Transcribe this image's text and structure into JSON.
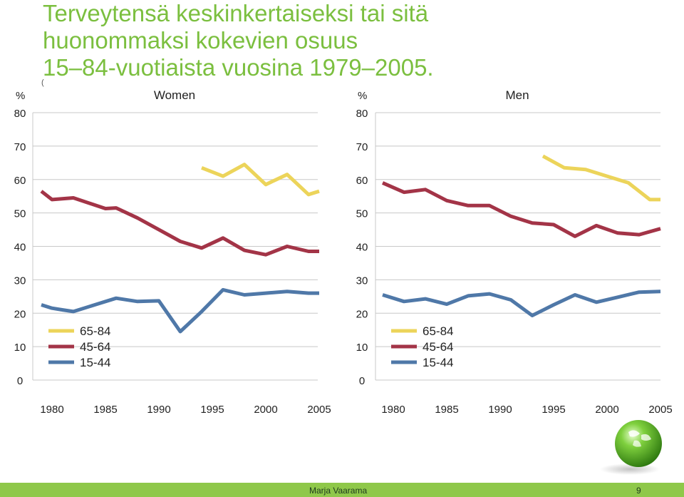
{
  "title_lines": [
    "Terveytensä keskinkertaiseksi tai sitä",
    "huonommaksi kokevien osuus",
    "15–84-vuotiaista vuosina 1979–2005."
  ],
  "note": "(",
  "footer": {
    "author": "Marja Vaarama",
    "page": "9"
  },
  "colors": {
    "title": "#7bbf3f",
    "age_65_84": "#ecd45a",
    "age_45_64": "#a33447",
    "age_15_44": "#4f78a8",
    "grid": "#c8c8c8",
    "footer": "#8fc84a"
  },
  "chart_data": [
    {
      "type": "line",
      "title": "Women",
      "ylabel": "%",
      "ylim": [
        0,
        80
      ],
      "yticks": [
        0,
        10,
        20,
        30,
        40,
        50,
        60,
        70,
        80
      ],
      "xlim": [
        1979,
        2005
      ],
      "xticks": [
        1980,
        1985,
        1990,
        1995,
        2000,
        2005
      ],
      "legend": [
        "65-84",
        "45-64",
        "15-44"
      ],
      "series": [
        {
          "name": "65-84",
          "color": "#ecd45a",
          "x": [
            1994,
            1996,
            1998,
            2000,
            2002,
            2004,
            2005
          ],
          "y": [
            63.5,
            61,
            64.5,
            58.5,
            61.5,
            55.5,
            56.5
          ]
        },
        {
          "name": "45-64",
          "color": "#a33447",
          "x": [
            1979,
            1980,
            1982,
            1985,
            1986,
            1988,
            1990,
            1992,
            1994,
            1996,
            1998,
            2000,
            2002,
            2004,
            2005
          ],
          "y": [
            56.5,
            54,
            54.5,
            51.3,
            51.5,
            48.5,
            45,
            41.5,
            39.5,
            42.5,
            38.8,
            37.5,
            40,
            38.5,
            38.5
          ]
        },
        {
          "name": "15-44",
          "color": "#4f78a8",
          "x": [
            1979,
            1980,
            1981,
            1982,
            1984,
            1986,
            1988,
            1990,
            1992,
            1994,
            1996,
            1998,
            2000,
            2002,
            2004,
            2005
          ],
          "y": [
            22.5,
            21.5,
            21,
            20.5,
            22.5,
            24.5,
            23.5,
            23.7,
            14.5,
            20.5,
            27,
            25.5,
            26,
            26.5,
            26,
            26
          ]
        }
      ]
    },
    {
      "type": "line",
      "title": "Men",
      "ylabel": "%",
      "ylim": [
        0,
        80
      ],
      "yticks": [
        0,
        10,
        20,
        30,
        40,
        50,
        60,
        70,
        80
      ],
      "xlim": [
        1979,
        2005
      ],
      "xticks": [
        1980,
        1985,
        1990,
        1995,
        2000,
        2005
      ],
      "legend": [
        "65-84",
        "45-64",
        "15-44"
      ],
      "series": [
        {
          "name": "65-84",
          "color": "#ecd45a",
          "x": [
            1994,
            1996,
            1998,
            2000,
            2002,
            2004,
            2005
          ],
          "y": [
            67,
            63.5,
            63,
            61,
            59,
            54,
            54
          ]
        },
        {
          "name": "45-64",
          "color": "#a33447",
          "x": [
            1979,
            1981,
            1983,
            1985,
            1987,
            1989,
            1991,
            1993,
            1995,
            1997,
            1999,
            2001,
            2003,
            2005
          ],
          "y": [
            59,
            56.2,
            57,
            53.7,
            52.2,
            52.2,
            49,
            47,
            46.5,
            43,
            46.2,
            44,
            43.5,
            45.3
          ]
        },
        {
          "name": "15-44",
          "color": "#4f78a8",
          "x": [
            1979,
            1981,
            1983,
            1985,
            1987,
            1989,
            1991,
            1993,
            1995,
            1997,
            1999,
            2001,
            2003,
            2005
          ],
          "y": [
            25.5,
            23.5,
            24.3,
            22.7,
            25.2,
            25.8,
            24,
            19.3,
            22.5,
            25.5,
            23.3,
            24.8,
            26.3,
            26.5
          ]
        }
      ]
    }
  ]
}
